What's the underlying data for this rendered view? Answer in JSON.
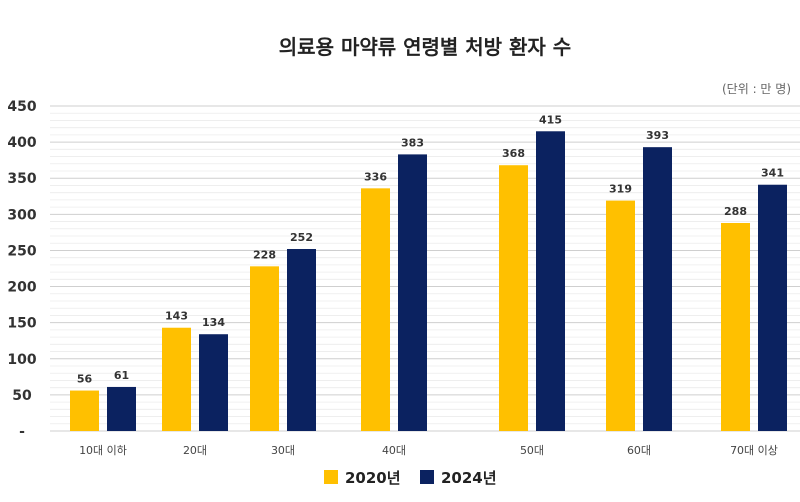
{
  "chart_data": {
    "type": "bar",
    "title": "의료용 마약류 연령별 처방 환자 수",
    "unit_note": "(단위 : 만 명)",
    "categories": [
      "10대 이하",
      "20대",
      "30대",
      "40대",
      "50대",
      "60대",
      "70대 이상"
    ],
    "series": [
      {
        "name": "2020년",
        "color": "#FFC000",
        "values": [
          56,
          143,
          228,
          336,
          368,
          319,
          288
        ]
      },
      {
        "name": "2024년",
        "color": "#0B2260",
        "values": [
          61,
          134,
          252,
          383,
          415,
          393,
          341
        ]
      }
    ],
    "ylim": [
      0,
      450
    ],
    "yticks": [
      "-",
      "50",
      "100",
      "150",
      "200",
      "250",
      "300",
      "350",
      "400",
      "450"
    ],
    "legend_position": "bottom",
    "grid": true
  }
}
